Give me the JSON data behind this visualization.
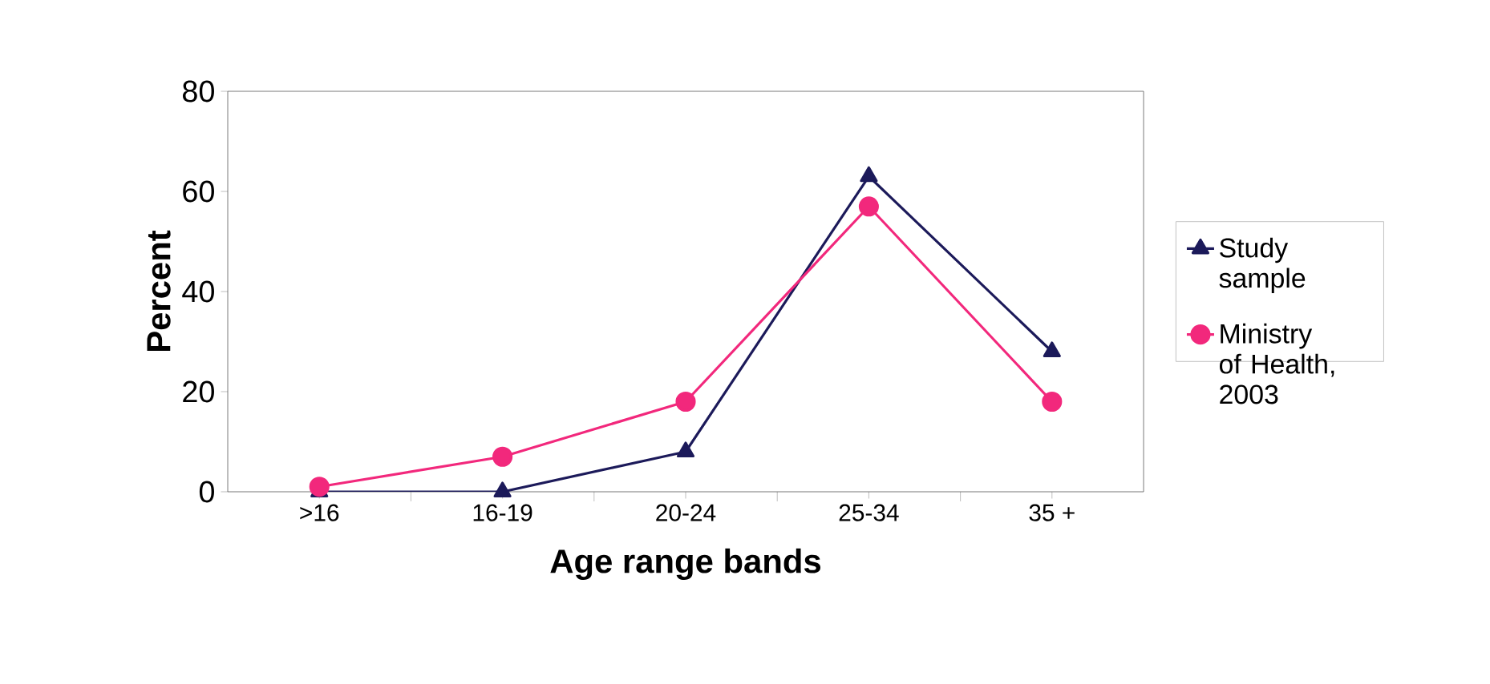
{
  "chart_data": {
    "type": "line",
    "xlabel": "Age range bands",
    "ylabel": "Percent",
    "categories": [
      ">16",
      "16-19",
      "20-24",
      "25-34",
      "35 +"
    ],
    "series": [
      {
        "name": "Study sample",
        "color": "#1c1a5a",
        "marker": "triangle",
        "values": [
          0,
          0,
          8,
          63,
          28
        ]
      },
      {
        "name": "Ministry of Health, 2003",
        "color": "#f2287c",
        "marker": "circle",
        "values": [
          1,
          7,
          18,
          57,
          18
        ]
      }
    ],
    "ylim": [
      0,
      80
    ],
    "yticks": [
      0,
      20,
      40,
      60,
      80
    ],
    "grid": false,
    "legend": "right"
  }
}
